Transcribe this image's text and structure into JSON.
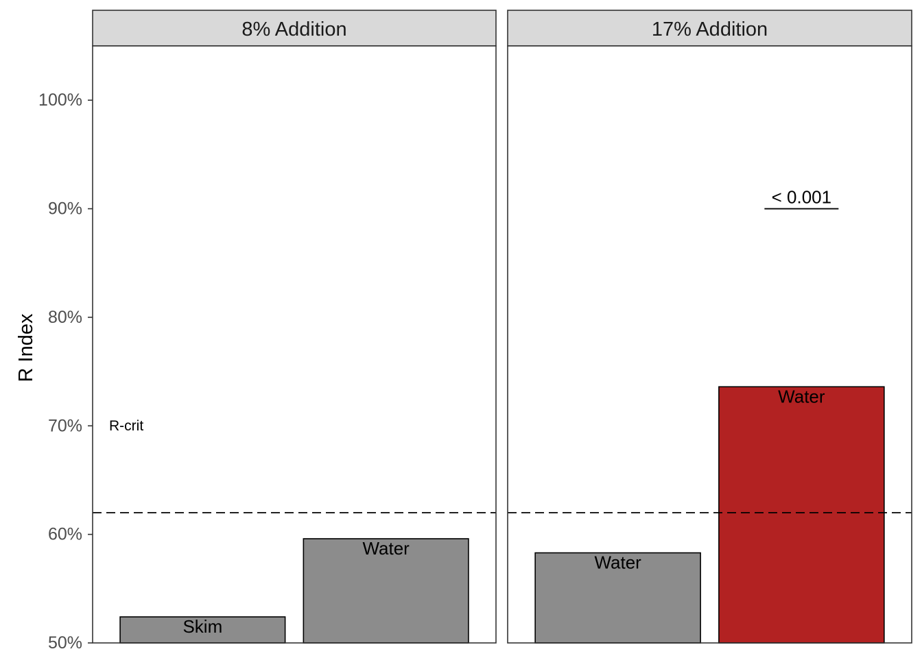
{
  "chart_data": {
    "type": "bar",
    "ylabel": "R Index",
    "ylim": [
      50,
      105
    ],
    "y_ticks": [
      {
        "value": 50,
        "label": "50%"
      },
      {
        "value": 60,
        "label": "60%"
      },
      {
        "value": 70,
        "label": "70%"
      },
      {
        "value": 80,
        "label": "80%"
      },
      {
        "value": 90,
        "label": "90%"
      },
      {
        "value": 100,
        "label": "100%"
      }
    ],
    "reference_line": {
      "value": 62,
      "label": "R-crit",
      "label_at": 70
    },
    "grid": false,
    "legend": "none",
    "panels": [
      {
        "title": "8% Addition",
        "bars": [
          {
            "label": "Skim",
            "value": 52.4,
            "color": "#8c8c8c"
          },
          {
            "label": "Water",
            "value": 59.6,
            "color": "#8c8c8c"
          }
        ],
        "annotations": []
      },
      {
        "title": "17% Addition",
        "bars": [
          {
            "label": "Water",
            "value": 58.3,
            "color": "#8c8c8c"
          },
          {
            "label": "Water",
            "value": 73.6,
            "color": "#b22222"
          }
        ],
        "annotations": [
          {
            "text": "< 0.001",
            "bar_index": 1,
            "y": 90
          }
        ]
      }
    ]
  }
}
